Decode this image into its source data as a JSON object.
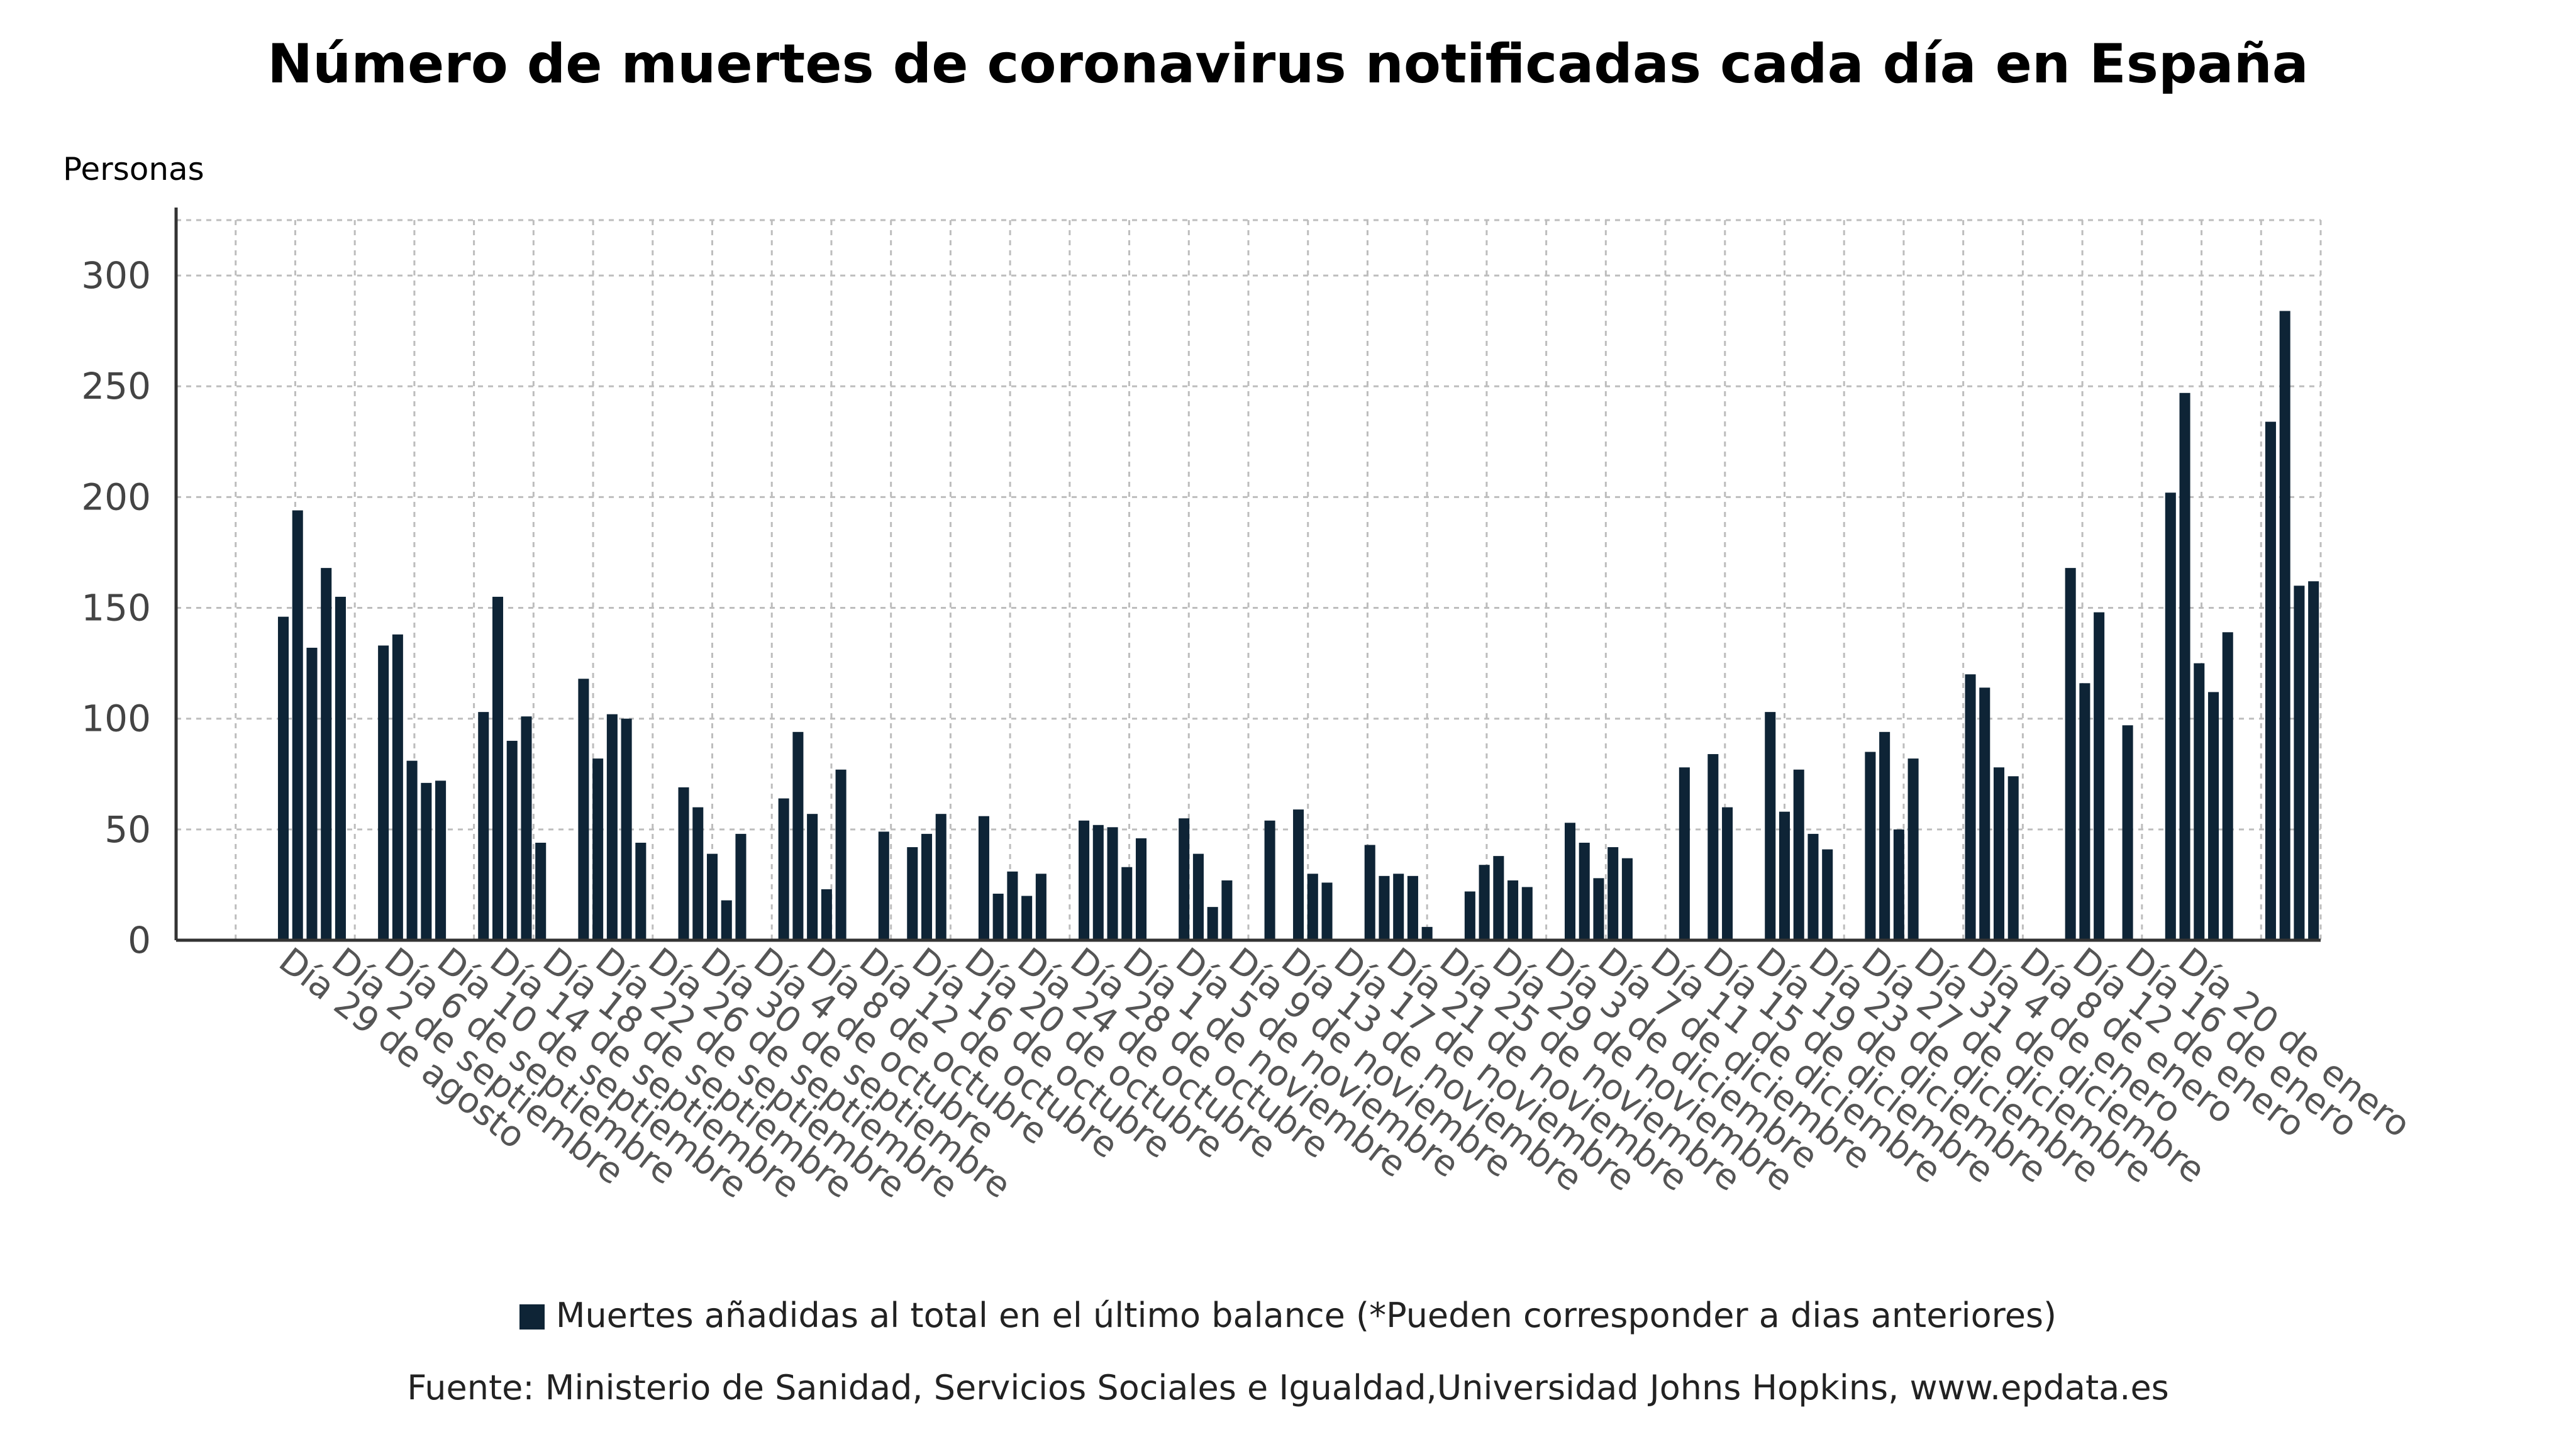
{
  "chart_data": {
    "type": "bar",
    "title": "Número de muertes de coronavirus notificadas cada día en España",
    "ylabel": "Personas",
    "xlabel": "",
    "ylim": [
      0,
      325
    ],
    "yticks": [
      0,
      50,
      100,
      150,
      200,
      250,
      300
    ],
    "grid": true,
    "legend_position": "bottom",
    "bar_color": "#0e2436",
    "x_tick_labels": [
      "Día 29 de agosto",
      "Día 2 de septiembre",
      "Día 6 de septiembre",
      "Día 10 de septiembre",
      "Día 14 de septiembre",
      "Día 18 de septiembre",
      "Día 22 de septiembre",
      "Día 26 de septiembre",
      "Día 30 de septiembre",
      "Día 4 de octubre",
      "Día 8 de octubre",
      "Día 12 de octubre",
      "Día 16 de octubre",
      "Día 20 de octubre",
      "Día 24 de octubre",
      "Día 28 de octubre",
      "Día 1 de noviembre",
      "Día 5 de noviembre",
      "Día 9 de noviembre",
      "Día 13 de noviembre",
      "Día 17 de noviembre",
      "Día 21 de noviembre",
      "Día 25 de noviembre",
      "Día 29 de noviembre",
      "Día 3 de diciembre",
      "Día 7 de diciembre",
      "Día 11 de diciembre",
      "Día 15 de diciembre",
      "Día 19 de diciembre",
      "Día 23 de diciembre",
      "Día 27 de diciembre",
      "Día 31 de diciembre",
      "Día 4 de enero",
      "Día 8 de enero",
      "Día 12 de enero",
      "Día 16 de enero",
      "Día 20 de enero"
    ],
    "series": [
      {
        "name": "Muertes añadidas al total en el último balance (*Pueden corresponder a dias anteriores)",
        "values": [
          0,
          0,
          0,
          0,
          0,
          0,
          0,
          146,
          194,
          132,
          168,
          155,
          0,
          0,
          133,
          138,
          81,
          71,
          72,
          0,
          0,
          103,
          155,
          90,
          101,
          44,
          0,
          0,
          118,
          82,
          102,
          100,
          44,
          0,
          0,
          69,
          60,
          39,
          18,
          48,
          0,
          0,
          64,
          94,
          57,
          23,
          77,
          0,
          0,
          49,
          0,
          42,
          48,
          57,
          0,
          0,
          56,
          21,
          31,
          20,
          30,
          0,
          0,
          54,
          52,
          51,
          33,
          46,
          0,
          0,
          55,
          39,
          15,
          27,
          0,
          0,
          54,
          0,
          59,
          30,
          26,
          0,
          0,
          43,
          29,
          30,
          29,
          6,
          0,
          0,
          22,
          34,
          38,
          27,
          24,
          0,
          0,
          53,
          44,
          28,
          42,
          37,
          0,
          0,
          0,
          78,
          0,
          84,
          60,
          0,
          0,
          103,
          58,
          77,
          48,
          41,
          0,
          0,
          85,
          94,
          50,
          82,
          0,
          0,
          0,
          120,
          114,
          78,
          74,
          0,
          0,
          0,
          168,
          116,
          148,
          0,
          97,
          0,
          0,
          202,
          247,
          125,
          112,
          139,
          0,
          0,
          234,
          284,
          160,
          162
        ]
      }
    ]
  },
  "legend_label": "Muertes añadidas al total en el último balance (*Pueden corresponder a dias anteriores)",
  "source": "Fuente: Ministerio de Sanidad, Servicios Sociales e Igualdad,Universidad Johns Hopkins, www.epdata.es"
}
